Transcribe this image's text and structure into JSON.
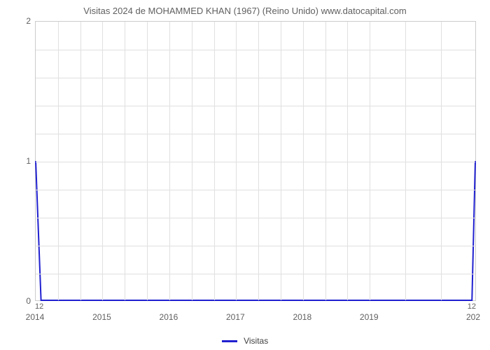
{
  "chart": {
    "type": "line",
    "title": "Visitas 2024 de MOHAMMED KHAN (1967) (Reino Unido) www.datocapital.com",
    "title_fontsize": 13,
    "title_color": "#606060",
    "background_color": "#ffffff",
    "grid_color": "#e0e0e0",
    "axis_line_color": "#cccccc",
    "line_color": "#2020d0",
    "line_width": 2,
    "xlim": [
      2014,
      2020.6
    ],
    "ylim": [
      0,
      2
    ],
    "x_ticks": [
      2014,
      2015,
      2016,
      2017,
      2018,
      2019
    ],
    "x_tick_right_edge": "202",
    "y_ticks": [
      0,
      1,
      2
    ],
    "y_minor_count": 4,
    "x_minor_count": 2,
    "label_fontsize": 12,
    "label_color": "#606060",
    "legend_label": "Visitas",
    "legend_fontsize": 12,
    "corner_start": "12",
    "corner_end": "12",
    "data": {
      "x": [
        2014,
        2014.08,
        2020.55,
        2020.6
      ],
      "y": [
        1,
        0,
        0,
        1
      ]
    }
  }
}
